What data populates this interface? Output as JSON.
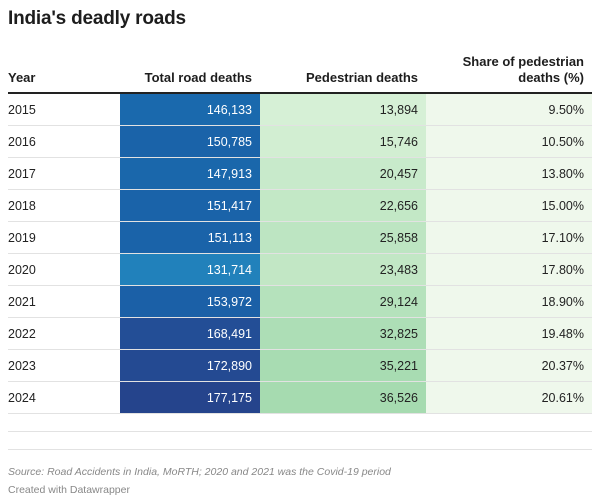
{
  "title": "India's deadly roads",
  "headers": {
    "year": "Year",
    "total": "Total road deaths",
    "pedestrian": "Pedestrian deaths",
    "share": "Share of pedestrian deaths (%)"
  },
  "footer": {
    "source": "Source: Road Accidents in India, MoRTH; 2020 and 2021 was the Covid-19 period",
    "credit": "Created with Datawrapper"
  },
  "chart_data": {
    "type": "table",
    "title": "India's deadly roads",
    "columns": [
      "Year",
      "Total road deaths",
      "Pedestrian deaths",
      "Share of pedestrian deaths (%)"
    ],
    "rows": [
      {
        "year": "2015",
        "total": "146,133",
        "pedestrian": "13,894",
        "share": "9.50%",
        "total_value": 146133,
        "pedestrian_value": 13894,
        "total_color": "#1a69ad",
        "ped_color": "#d6f0d6",
        "share_color": "#eff8ec"
      },
      {
        "year": "2016",
        "total": "150,785",
        "pedestrian": "15,746",
        "share": "10.50%",
        "total_value": 150785,
        "pedestrian_value": 15746,
        "total_color": "#1a63a9",
        "ped_color": "#d2eed2",
        "share_color": "#eff8ec"
      },
      {
        "year": "2017",
        "total": "147,913",
        "pedestrian": "20,457",
        "share": "13.80%",
        "total_value": 147913,
        "pedestrian_value": 20457,
        "total_color": "#1a67ab",
        "ped_color": "#c8eacb",
        "share_color": "#eff8ec"
      },
      {
        "year": "2018",
        "total": "151,417",
        "pedestrian": "22,656",
        "share": "15.00%",
        "total_value": 151417,
        "pedestrian_value": 22656,
        "total_color": "#1a63a9",
        "ped_color": "#c3e8c6",
        "share_color": "#eff8ec"
      },
      {
        "year": "2019",
        "total": "151,113",
        "pedestrian": "25,858",
        "share": "17.10%",
        "total_value": 151113,
        "pedestrian_value": 25858,
        "total_color": "#1a63a9",
        "ped_color": "#bde5c2",
        "share_color": "#eff8ec"
      },
      {
        "year": "2020",
        "total": "131,714",
        "pedestrian": "23,483",
        "share": "17.80%",
        "total_value": 131714,
        "pedestrian_value": 23483,
        "total_color": "#2181bb",
        "ped_color": "#c2e7c5",
        "share_color": "#eff8ec"
      },
      {
        "year": "2021",
        "total": "153,972",
        "pedestrian": "29,124",
        "share": "18.90%",
        "total_value": 153972,
        "pedestrian_value": 29124,
        "total_color": "#1b60a7",
        "ped_color": "#b5e2bc",
        "share_color": "#eff8ec"
      },
      {
        "year": "2022",
        "total": "168,491",
        "pedestrian": "32,825",
        "share": "19.48%",
        "total_value": 168491,
        "pedestrian_value": 32825,
        "total_color": "#234e96",
        "ped_color": "#addeb6",
        "share_color": "#eff8ec"
      },
      {
        "year": "2023",
        "total": "172,890",
        "pedestrian": "35,221",
        "share": "20.37%",
        "total_value": 172890,
        "pedestrian_value": 35221,
        "total_color": "#244a92",
        "ped_color": "#a8dcb2",
        "share_color": "#eff8ec"
      },
      {
        "year": "2024",
        "total": "177,175",
        "pedestrian": "36,526",
        "share": "20.61%",
        "total_value": 177175,
        "pedestrian_value": 36526,
        "total_color": "#25448c",
        "ped_color": "#a6dbb0",
        "share_color": "#eff8ec"
      }
    ]
  }
}
